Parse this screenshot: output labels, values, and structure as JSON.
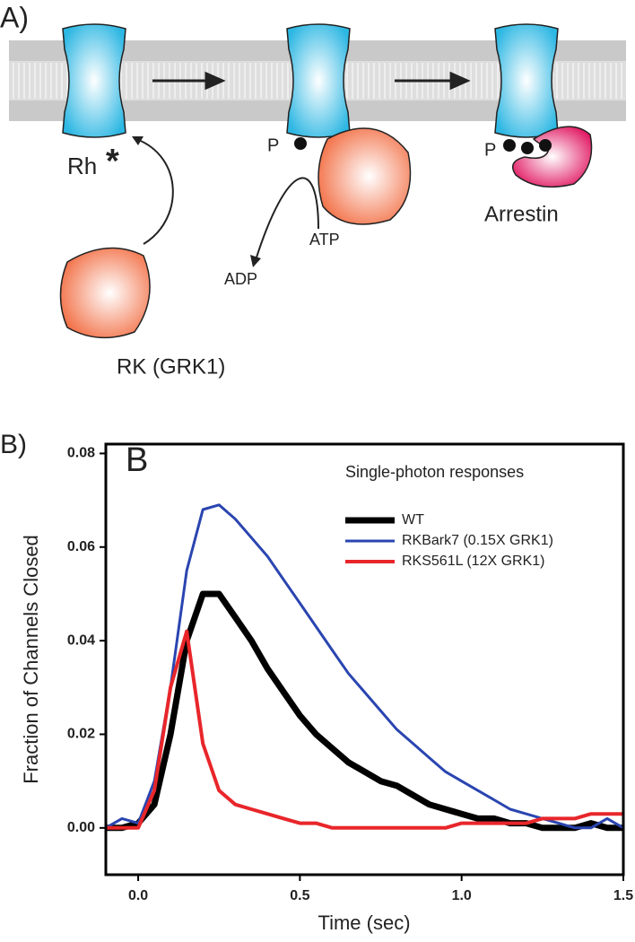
{
  "panel_a": {
    "label": "A)",
    "rh": "Rh",
    "star": "*",
    "p1": "P",
    "atp": "ATP",
    "adp": "ADP",
    "p2": "P",
    "arrestin": "Arrestin",
    "rk": "RK (GRK1)"
  },
  "chart_data": {
    "type": "line",
    "panel_label": "B)",
    "title": "B",
    "subtitle": "Single-photon responses",
    "x_label": "Time (sec)",
    "y_label": "Fraction of Channels Closed",
    "x": [
      -0.1,
      -0.05,
      0,
      0.05,
      0.1,
      0.15,
      0.2,
      0.25,
      0.3,
      0.35,
      0.4,
      0.45,
      0.5,
      0.55,
      0.6,
      0.65,
      0.7,
      0.75,
      0.8,
      0.85,
      0.9,
      0.95,
      1.0,
      1.05,
      1.1,
      1.15,
      1.2,
      1.25,
      1.3,
      1.35,
      1.4,
      1.45,
      1.5
    ],
    "series": [
      {
        "name": "WT",
        "color": "#000000",
        "values": [
          0,
          0,
          0.001,
          0.005,
          0.02,
          0.04,
          0.05,
          0.05,
          0.045,
          0.04,
          0.034,
          0.029,
          0.024,
          0.02,
          0.017,
          0.014,
          0.012,
          0.01,
          0.009,
          0.007,
          0.005,
          0.004,
          0.003,
          0.002,
          0.002,
          0.001,
          0.001,
          0,
          0,
          0,
          0.001,
          0,
          0
        ]
      },
      {
        "name": "RKBark7 (0.15X GRK1)",
        "color": "#2a45b0",
        "values": [
          0,
          0.002,
          0.001,
          0.01,
          0.03,
          0.055,
          0.068,
          0.069,
          0.066,
          0.062,
          0.058,
          0.053,
          0.048,
          0.043,
          0.038,
          0.033,
          0.029,
          0.025,
          0.021,
          0.018,
          0.015,
          0.012,
          0.01,
          0.008,
          0.006,
          0.004,
          0.003,
          0.002,
          0.001,
          0,
          0,
          0.002,
          0
        ]
      },
      {
        "name": "RKS561L (12X GRK1)",
        "color": "#e8262a",
        "values": [
          0,
          0,
          0,
          0.008,
          0.03,
          0.042,
          0.018,
          0.008,
          0.005,
          0.004,
          0.003,
          0.002,
          0.001,
          0.001,
          0,
          0,
          0,
          0,
          0,
          0,
          0,
          0,
          0.001,
          0.001,
          0.001,
          0.001,
          0.001,
          0.002,
          0.002,
          0.002,
          0.003,
          0.003,
          0.003
        ]
      }
    ],
    "xlim": [
      -0.1,
      1.5
    ],
    "xticks": [
      {
        "value": 0,
        "label": "0.0"
      },
      0.5,
      {
        "value": 1,
        "label": "1.0"
      },
      1.5
    ],
    "ylim": [
      -0.01,
      0.082
    ],
    "yticks": [
      {
        "value": 0,
        "label": "0.00"
      },
      0.02,
      0.04,
      0.06,
      0.08
    ]
  }
}
